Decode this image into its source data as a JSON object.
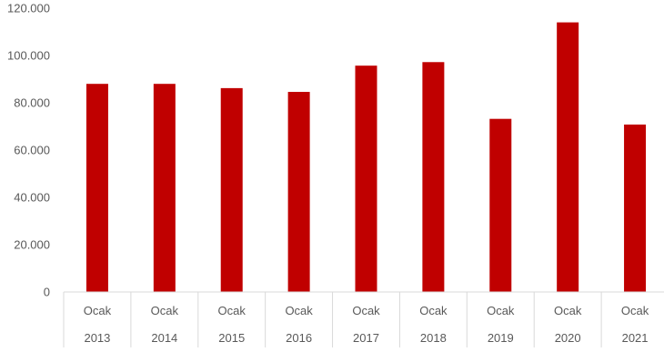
{
  "chart_data": {
    "type": "bar",
    "categories": [
      [
        "Ocak",
        "2013"
      ],
      [
        "Ocak",
        "2014"
      ],
      [
        "Ocak",
        "2015"
      ],
      [
        "Ocak",
        "2016"
      ],
      [
        "Ocak",
        "2017"
      ],
      [
        "Ocak",
        "2018"
      ],
      [
        "Ocak",
        "2019"
      ],
      [
        "Ocak",
        "2020"
      ],
      [
        "Ocak",
        "2021"
      ]
    ],
    "values": [
      88000,
      88000,
      86200,
      84600,
      95700,
      97200,
      73200,
      114000,
      70800
    ],
    "ylim": [
      0,
      120000
    ],
    "yticks": [
      0,
      20000,
      40000,
      60000,
      80000,
      100000,
      120000
    ],
    "ytick_labels": [
      "0",
      "20.000",
      "40.000",
      "60.000",
      "80.000",
      "100.000",
      "120.000"
    ],
    "title": "",
    "xlabel": "",
    "ylabel": "",
    "grid": false,
    "legend": "none",
    "bar_color": "#C00000",
    "axis_color": "#D9D9D9"
  }
}
